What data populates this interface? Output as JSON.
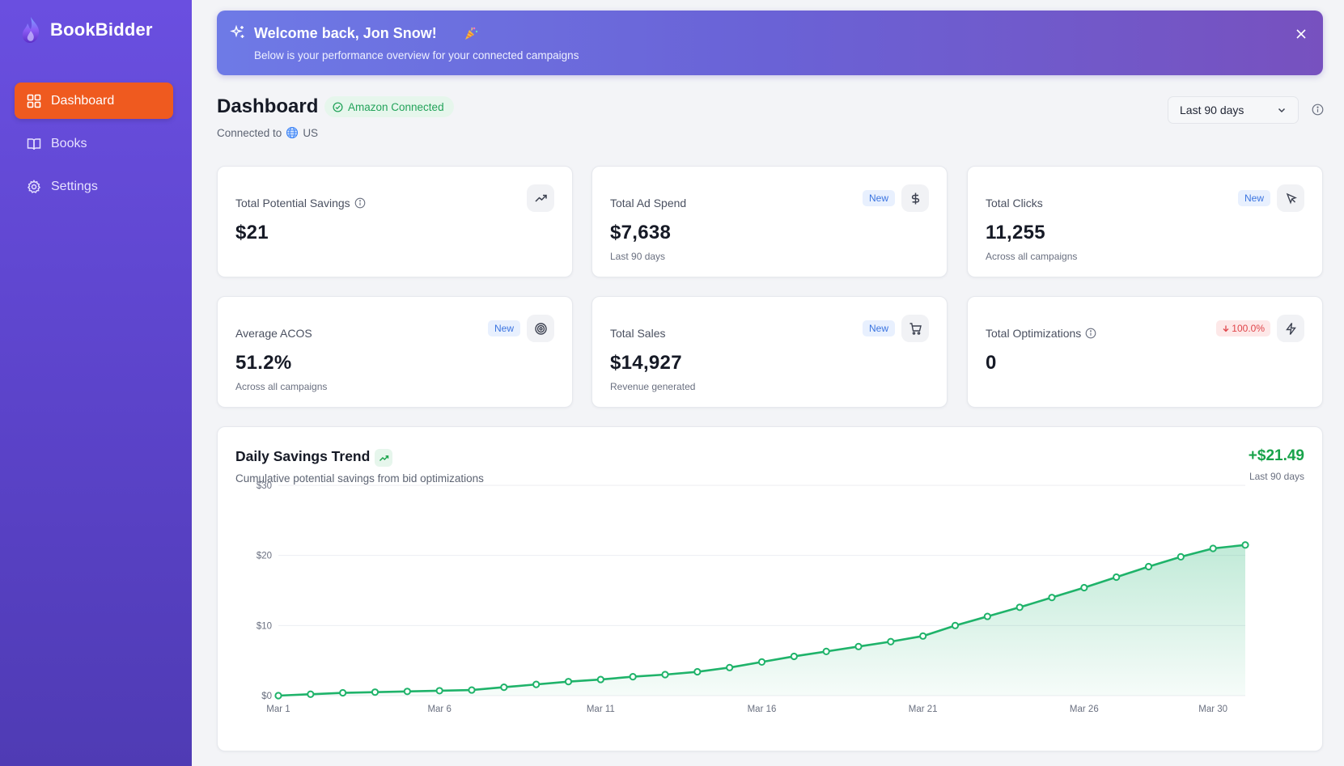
{
  "app": {
    "name": "BookBidder"
  },
  "sidebar": {
    "items": [
      {
        "label": "Dashboard",
        "icon": "grid-icon",
        "active": true
      },
      {
        "label": "Books",
        "icon": "book-icon",
        "active": false
      },
      {
        "label": "Settings",
        "icon": "gear-icon",
        "active": false
      }
    ]
  },
  "welcome": {
    "title": "Welcome back, Jon Snow!",
    "subtitle": "Below is your performance overview for your connected campaigns"
  },
  "header": {
    "title": "Dashboard",
    "connection_badge": "Amazon Connected",
    "connected_to_label": "Connected to",
    "region": "US",
    "range_selected": "Last 90 days"
  },
  "cards": {
    "potential_savings": {
      "label": "Total Potential Savings",
      "value": "$21",
      "caption": ""
    },
    "ad_spend": {
      "label": "Total Ad Spend",
      "tag": "New",
      "value": "$7,638",
      "caption": "Last 90 days"
    },
    "clicks": {
      "label": "Total Clicks",
      "tag": "New",
      "value": "11,255",
      "caption": "Across all campaigns"
    },
    "acos": {
      "label": "Average ACOS",
      "tag": "New",
      "value": "51.2%",
      "caption": "Across all campaigns"
    },
    "sales": {
      "label": "Total Sales",
      "tag": "New",
      "value": "$14,927",
      "caption": "Revenue generated"
    },
    "optimizations": {
      "label": "Total Optimizations",
      "change": "100.0%",
      "change_direction": "down",
      "value": "0"
    }
  },
  "chart_section": {
    "title": "Daily Savings Trend",
    "subtitle": "Cumulative potential savings from bid optimizations",
    "total": "+$21.49",
    "total_caption": "Last 90 days"
  },
  "colors": {
    "sidebar": "#5b43c9",
    "active_nav": "#ef5a1f",
    "accent_green": "#18a34a",
    "line": "#1fb36a"
  },
  "chart_data": {
    "type": "area",
    "title": "Daily Savings Trend",
    "ylim": [
      0,
      30
    ],
    "y_ticks": [
      "$0",
      "$10",
      "$20",
      "$30"
    ],
    "y_tick_values": [
      0,
      10,
      20,
      30
    ],
    "x_tick_labels": [
      "Mar 1",
      "Mar 6",
      "Mar 11",
      "Mar 16",
      "Mar 21",
      "Mar 26",
      "Mar 30"
    ],
    "x_tick_days": [
      1,
      6,
      11,
      16,
      21,
      26,
      30
    ],
    "grid": true,
    "series": [
      {
        "x": [
          1,
          2,
          3,
          4,
          5,
          6,
          7,
          8,
          9,
          10,
          11,
          12,
          13,
          14,
          15,
          16,
          17,
          18,
          19,
          20,
          21,
          22,
          23,
          24,
          25,
          26,
          27,
          28,
          29,
          30,
          31
        ],
        "values": [
          0.0,
          0.2,
          0.4,
          0.5,
          0.6,
          0.7,
          0.8,
          1.2,
          1.6,
          2.0,
          2.3,
          2.7,
          3.0,
          3.4,
          4.0,
          4.8,
          5.6,
          6.3,
          7.0,
          7.7,
          8.5,
          10.0,
          11.3,
          12.6,
          14.0,
          15.4,
          16.9,
          18.4,
          19.8,
          21.0,
          21.49
        ]
      }
    ]
  }
}
